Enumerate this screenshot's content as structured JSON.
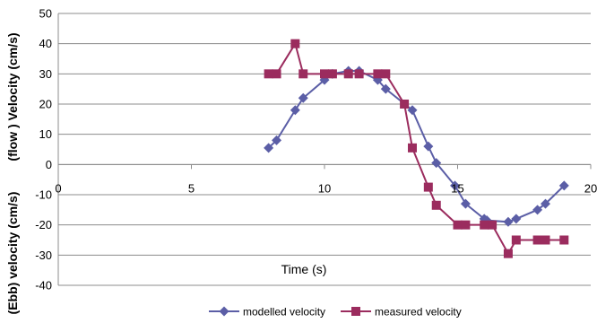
{
  "chart_data": {
    "type": "line",
    "xlabel": "Time (s)",
    "ylabel_top": "(flow ) Velocity (cm/s)",
    "ylabel_bottom": "(Ebb)  velocity (cm/s)",
    "xlim": [
      0,
      20
    ],
    "ylim": [
      -40,
      50
    ],
    "x_ticks": [
      "0",
      "5",
      "10",
      "15",
      "20"
    ],
    "y_ticks": [
      "50",
      "40",
      "30",
      "20",
      "10",
      "0",
      "-10",
      "-20",
      "-30",
      "-40"
    ],
    "grid": "horizontal",
    "legend_position": "bottom",
    "series": [
      {
        "name": "modelled velocity",
        "color": "#5b5ea6",
        "marker": "diamond",
        "points": [
          [
            7.9,
            5.5
          ],
          [
            8.2,
            8
          ],
          [
            8.9,
            18
          ],
          [
            9.2,
            22
          ],
          [
            10.0,
            28
          ],
          [
            10.3,
            30
          ],
          [
            10.9,
            31
          ],
          [
            11.3,
            31
          ],
          [
            12.0,
            28
          ],
          [
            12.3,
            25
          ],
          [
            13.3,
            18
          ],
          [
            13.9,
            6
          ],
          [
            14.2,
            0.5
          ],
          [
            14.9,
            -7
          ],
          [
            15.3,
            -13
          ],
          [
            16.0,
            -18
          ],
          [
            16.1,
            -18.5
          ],
          [
            16.9,
            -19
          ],
          [
            17.2,
            -18
          ],
          [
            18.0,
            -15
          ],
          [
            18.3,
            -13
          ],
          [
            19.0,
            -7
          ]
        ]
      },
      {
        "name": "measured velocity",
        "color": "#9b2c5e",
        "marker": "square",
        "points": [
          [
            7.9,
            30
          ],
          [
            8.2,
            30
          ],
          [
            8.9,
            40
          ],
          [
            9.2,
            30
          ],
          [
            10.0,
            30
          ],
          [
            10.3,
            30
          ],
          [
            10.9,
            30
          ],
          [
            11.3,
            30
          ],
          [
            12.0,
            30
          ],
          [
            12.3,
            30
          ],
          [
            13.0,
            20
          ],
          [
            13.3,
            5.5
          ],
          [
            13.9,
            -7.5
          ],
          [
            14.2,
            -13.5
          ],
          [
            15.0,
            -20
          ],
          [
            15.3,
            -20
          ],
          [
            16.0,
            -20
          ],
          [
            16.3,
            -20
          ],
          [
            16.9,
            -29.5
          ],
          [
            17.2,
            -25
          ],
          [
            18.0,
            -25
          ],
          [
            18.3,
            -25
          ],
          [
            19.0,
            -25
          ]
        ]
      }
    ]
  }
}
